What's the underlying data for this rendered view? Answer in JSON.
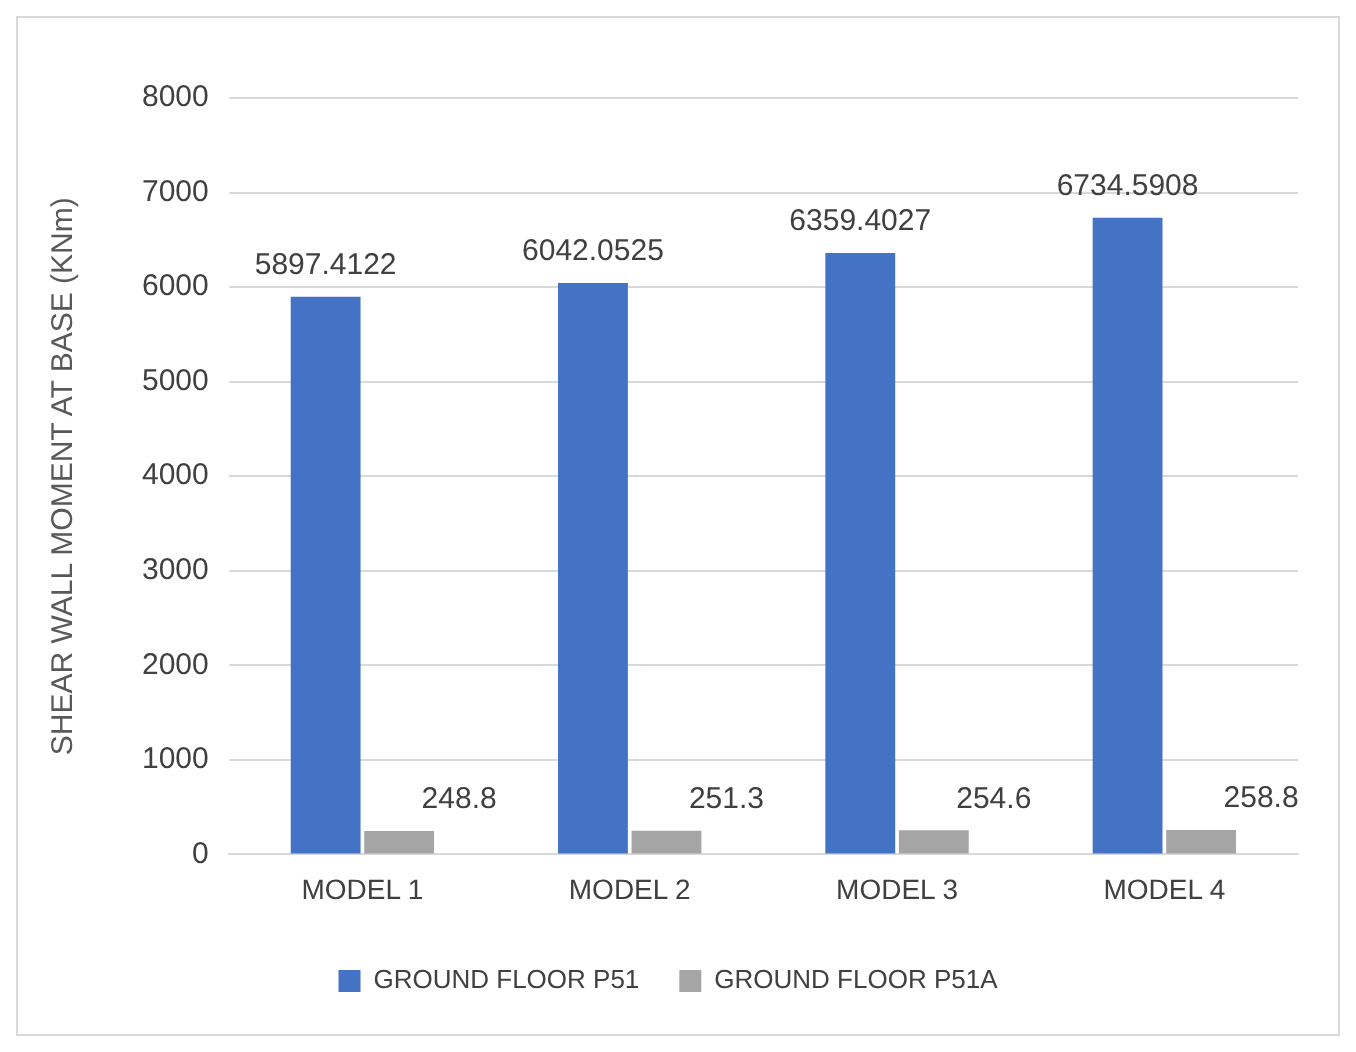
{
  "chart_data": {
    "type": "bar",
    "ylabel": "SHEAR WALL MOMENT AT BASE (KNm)",
    "categories": [
      "MODEL 1",
      "MODEL 2",
      "MODEL 3",
      "MODEL 4"
    ],
    "series": [
      {
        "name": "GROUND FLOOR P51",
        "color": "#4472c4",
        "values": [
          5897.4122,
          6042.0525,
          6359.4027,
          6734.5908
        ]
      },
      {
        "name": "GROUND FLOOR P51A",
        "color": "#a5a5a5",
        "values": [
          248.8,
          251.3,
          254.6,
          258.8
        ]
      }
    ],
    "ylim": [
      0,
      8000
    ],
    "yticks": [
      0,
      1000,
      2000,
      3000,
      4000,
      5000,
      6000,
      7000,
      8000
    ],
    "grid": "y",
    "legend": "bottom",
    "data_labels": true
  }
}
